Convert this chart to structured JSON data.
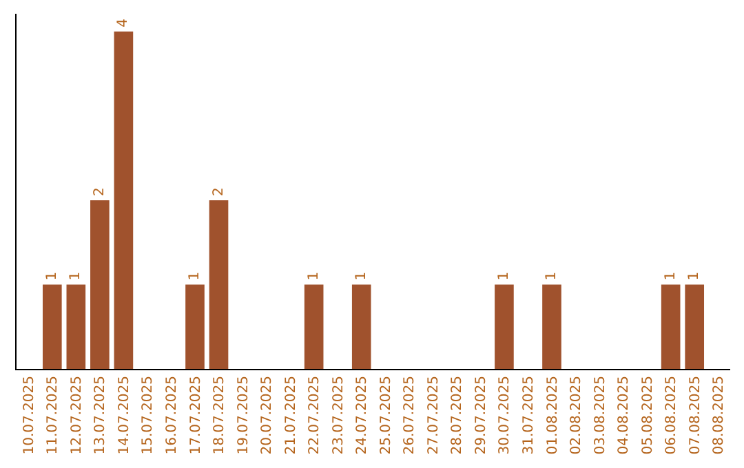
{
  "chart_data": {
    "type": "bar",
    "categories": [
      "10.07.2025",
      "11.07.2025",
      "12.07.2025",
      "13.07.2025",
      "14.07.2025",
      "15.07.2025",
      "16.07.2025",
      "17.07.2025",
      "18.07.2025",
      "19.07.2025",
      "20.07.2025",
      "21.07.2025",
      "22.07.2025",
      "23.07.2025",
      "24.07.2025",
      "25.07.2025",
      "26.07.2025",
      "27.07.2025",
      "28.07.2025",
      "29.07.2025",
      "30.07.2025",
      "31.07.2025",
      "01.08.2025",
      "02.08.2025",
      "03.08.2025",
      "04.08.2025",
      "05.08.2025",
      "06.08.2025",
      "07.08.2025",
      "08.08.2025"
    ],
    "values": [
      0,
      1,
      1,
      2,
      4,
      0,
      0,
      1,
      2,
      0,
      0,
      0,
      1,
      0,
      1,
      0,
      0,
      0,
      0,
      0,
      1,
      0,
      1,
      0,
      0,
      0,
      0,
      1,
      1,
      0
    ],
    "value_labels": [
      null,
      "1",
      "1",
      "2",
      "4",
      null,
      null,
      "1",
      "2",
      null,
      null,
      null,
      "1",
      null,
      "1",
      null,
      null,
      null,
      null,
      null,
      "1",
      null,
      "1",
      null,
      null,
      null,
      null,
      "1",
      "1",
      null
    ],
    "color": "#a0522d",
    "legend": false
  }
}
